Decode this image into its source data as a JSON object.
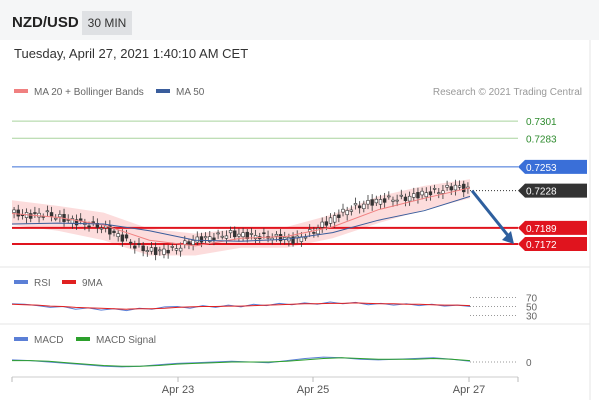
{
  "header": {
    "pair": "NZD/USD",
    "timeframe": "30 MIN",
    "datetime": "Tuesday, April 27, 2021 1:40:10 AM CET"
  },
  "main_legend": {
    "items": [
      {
        "label": "MA 20 + Bollinger Bands",
        "color": "#f08080"
      },
      {
        "label": "MA 50",
        "color": "#3a5d9c"
      }
    ],
    "credit": "Research © 2021 Trading Central"
  },
  "rsi_legend": {
    "items": [
      {
        "label": "RSI",
        "color": "#5b7fd6"
      },
      {
        "label": "9MA",
        "color": "#e02020"
      }
    ]
  },
  "macd_legend": {
    "items": [
      {
        "label": "MACD",
        "color": "#5b7fd6"
      },
      {
        "label": "MACD Signal",
        "color": "#2ca02c"
      }
    ]
  },
  "colors": {
    "resistance_green": "#a9d39e",
    "blue_level": "#3a6fd8",
    "current_price": "#333333",
    "support_red": "#e0141e",
    "arrow": "#2e5f9e",
    "candle": "#333333",
    "bollinger_fill": "#fbd3d3"
  },
  "chart_data": [
    {
      "type": "line",
      "panel": "price",
      "title": "",
      "ylim": [
        0.715,
        0.732
      ],
      "x_tick_labels": [
        "Apr 23",
        "Apr 25",
        "Apr 27"
      ],
      "price_levels": [
        {
          "value": 0.7301,
          "label": "0.7301",
          "style": "resistance"
        },
        {
          "value": 0.7283,
          "label": "0.7283",
          "style": "resistance"
        },
        {
          "value": 0.7253,
          "label": "0.7253",
          "style": "blue"
        },
        {
          "value": 0.7228,
          "label": "0.7228",
          "style": "current"
        },
        {
          "value": 0.7189,
          "label": "0.7189",
          "style": "support"
        },
        {
          "value": 0.7172,
          "label": "0.7172",
          "style": "support"
        }
      ],
      "price_path": [
        [
          0.0,
          0.7205
        ],
        [
          0.04,
          0.7202
        ],
        [
          0.08,
          0.7204
        ],
        [
          0.12,
          0.7198
        ],
        [
          0.16,
          0.7194
        ],
        [
          0.2,
          0.719
        ],
        [
          0.24,
          0.718
        ],
        [
          0.28,
          0.7168
        ],
        [
          0.32,
          0.7164
        ],
        [
          0.36,
          0.7167
        ],
        [
          0.4,
          0.7176
        ],
        [
          0.44,
          0.7179
        ],
        [
          0.48,
          0.7183
        ],
        [
          0.52,
          0.7181
        ],
        [
          0.56,
          0.718
        ],
        [
          0.6,
          0.7178
        ],
        [
          0.62,
          0.7176
        ],
        [
          0.66,
          0.7185
        ],
        [
          0.7,
          0.7198
        ],
        [
          0.74,
          0.7209
        ],
        [
          0.78,
          0.7215
        ],
        [
          0.82,
          0.7219
        ],
        [
          0.86,
          0.722
        ],
        [
          0.9,
          0.7225
        ],
        [
          0.94,
          0.7228
        ],
        [
          0.97,
          0.7233
        ],
        [
          1.0,
          0.7229
        ]
      ],
      "ma20": [
        [
          0.0,
          0.7204
        ],
        [
          0.1,
          0.72
        ],
        [
          0.2,
          0.7192
        ],
        [
          0.3,
          0.7176
        ],
        [
          0.4,
          0.717
        ],
        [
          0.5,
          0.7178
        ],
        [
          0.6,
          0.718
        ],
        [
          0.7,
          0.719
        ],
        [
          0.8,
          0.7208
        ],
        [
          0.9,
          0.722
        ],
        [
          1.0,
          0.7231
        ]
      ],
      "ma50": [
        [
          0.0,
          0.7193
        ],
        [
          0.1,
          0.7194
        ],
        [
          0.2,
          0.7193
        ],
        [
          0.3,
          0.7186
        ],
        [
          0.4,
          0.7176
        ],
        [
          0.5,
          0.7175
        ],
        [
          0.6,
          0.7177
        ],
        [
          0.7,
          0.7184
        ],
        [
          0.8,
          0.7197
        ],
        [
          0.9,
          0.7207
        ],
        [
          1.0,
          0.7222
        ]
      ],
      "bollinger_upper": [
        [
          0.0,
          0.7218
        ],
        [
          0.1,
          0.7212
        ],
        [
          0.2,
          0.7205
        ],
        [
          0.3,
          0.7188
        ],
        [
          0.4,
          0.7183
        ],
        [
          0.5,
          0.7188
        ],
        [
          0.6,
          0.719
        ],
        [
          0.7,
          0.7203
        ],
        [
          0.8,
          0.7222
        ],
        [
          0.9,
          0.7233
        ],
        [
          1.0,
          0.724
        ]
      ],
      "bollinger_lower": [
        [
          0.0,
          0.7192
        ],
        [
          0.1,
          0.7186
        ],
        [
          0.2,
          0.7176
        ],
        [
          0.3,
          0.716
        ],
        [
          0.4,
          0.716
        ],
        [
          0.5,
          0.7168
        ],
        [
          0.6,
          0.7168
        ],
        [
          0.7,
          0.7178
        ],
        [
          0.8,
          0.7194
        ],
        [
          0.9,
          0.7208
        ],
        [
          1.0,
          0.722
        ]
      ],
      "forecast": {
        "from_value": 0.7228,
        "to_value": 0.7172
      }
    },
    {
      "type": "line",
      "panel": "rsi",
      "ylim": [
        20,
        80
      ],
      "y_tick_labels": [
        "70",
        "50",
        "30"
      ],
      "series": [
        {
          "name": "RSI",
          "values": [
            56,
            55,
            52,
            48,
            50,
            44,
            47,
            42,
            45,
            41,
            46,
            44,
            49,
            50,
            46,
            52,
            48,
            53,
            49,
            55,
            52,
            57,
            54,
            58,
            55,
            60,
            56,
            59,
            54,
            57,
            53,
            56,
            52,
            55,
            51,
            53,
            50
          ]
        },
        {
          "name": "9MA",
          "values": [
            55,
            54,
            53,
            51,
            50,
            48,
            47,
            46,
            45,
            44,
            45,
            45,
            46,
            48,
            49,
            50,
            50,
            51,
            51,
            52,
            53,
            54,
            55,
            56,
            56,
            57,
            57,
            58,
            57,
            56,
            56,
            55,
            55,
            54,
            53,
            53,
            52
          ]
        }
      ]
    },
    {
      "type": "line",
      "panel": "macd",
      "ylim": [
        -0.002,
        0.002
      ],
      "y_tick_labels": [
        "0"
      ],
      "series": [
        {
          "name": "MACD",
          "values": [
            0.0003,
            0.0002,
            0.0,
            -0.0002,
            -0.0004,
            -0.0006,
            -0.0007,
            -0.0006,
            -0.0004,
            -0.0002,
            -0.0001,
            0.0,
            0.0001,
            0.0,
            -0.0001,
            0.0002,
            0.0005,
            0.0007,
            0.0006,
            0.0004,
            0.0003,
            0.0004,
            0.0005,
            0.0006,
            0.0004,
            0.0001
          ]
        },
        {
          "name": "MACD Signal",
          "values": [
            0.0002,
            0.0002,
            0.0001,
            -0.0001,
            -0.0003,
            -0.0005,
            -0.0006,
            -0.0006,
            -0.0005,
            -0.0003,
            -0.0002,
            -0.0001,
            0.0,
            0.0,
            0.0,
            0.0001,
            0.0003,
            0.0005,
            0.0006,
            0.0005,
            0.0004,
            0.0004,
            0.0004,
            0.0005,
            0.0004,
            0.0002
          ]
        }
      ]
    }
  ]
}
